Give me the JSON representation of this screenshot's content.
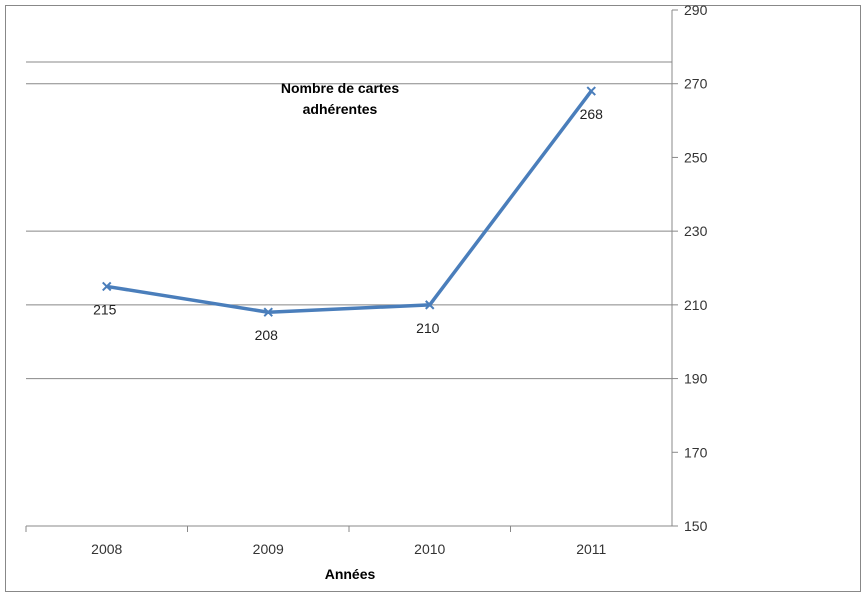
{
  "chart_data": {
    "type": "line",
    "title_lines": [
      "Nombre de cartes",
      "adhérentes"
    ],
    "xlabel": "Années",
    "ylabel": "",
    "categories": [
      "2008",
      "2009",
      "2010",
      "2011"
    ],
    "series": [
      {
        "values": [
          215,
          208,
          210,
          268
        ],
        "data_labels": [
          "215",
          "208",
          "210",
          "268"
        ],
        "color": "#4a7ebb"
      }
    ],
    "ylim": [
      150,
      290
    ],
    "yticks": [
      "150",
      "170",
      "190",
      "210",
      "230",
      "250",
      "270",
      "290"
    ],
    "y_axis_position": "right",
    "gridlines": "major-alternate",
    "legend": "none"
  }
}
